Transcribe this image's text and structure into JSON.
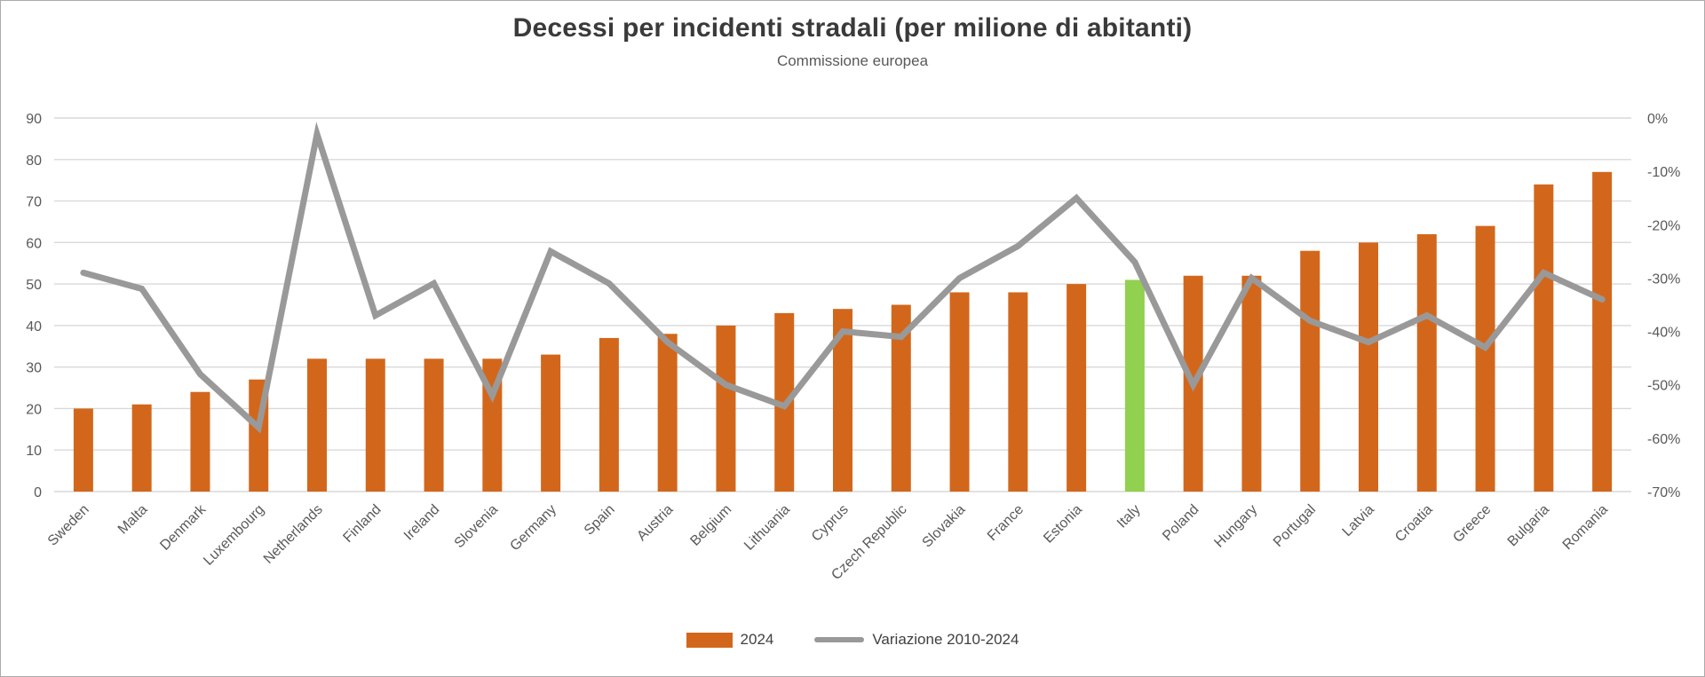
{
  "title": "Decessi per incidenti stradali (per milione di abitanti)",
  "subtitle": "Commissione europea",
  "legend": {
    "items": [
      {
        "label": "2024",
        "swatch": "bar"
      },
      {
        "label": "Variazione 2010-2024",
        "swatch": "line"
      }
    ]
  },
  "colors": {
    "bar": "#d2671c",
    "bar_highlight": "#92d050",
    "line": "#999999",
    "gridline": "#d9d9d9",
    "tick_text": "#595959",
    "title_text": "#3a3a3a"
  },
  "chart_data": {
    "type": "bar",
    "combo": "bar+line",
    "title": "Decessi per incidenti stradali (per milione di abitanti)",
    "subtitle": "Commissione europea",
    "categories": [
      "Sweden",
      "Malta",
      "Denmark",
      "Luxembourg",
      "Netherlands",
      "Finland",
      "Ireland",
      "Slovenia",
      "Germany",
      "Spain",
      "Austria",
      "Belgium",
      "Lithuania",
      "Cyprus",
      "Czech Republic",
      "Slovakia",
      "France",
      "Estonia",
      "Italy",
      "Poland",
      "Hungary",
      "Portugal",
      "Latvia",
      "Croatia",
      "Greece",
      "Bulgaria",
      "Romania"
    ],
    "series": [
      {
        "name": "2024",
        "type": "bar",
        "axis": "left",
        "values": [
          20,
          21,
          24,
          27,
          32,
          32,
          32,
          32,
          33,
          37,
          38,
          40,
          43,
          44,
          45,
          48,
          48,
          50,
          51,
          52,
          52,
          58,
          60,
          62,
          64,
          74,
          77
        ],
        "highlight": {
          "category": "Italy",
          "index": 18
        }
      },
      {
        "name": "Variazione 2010-2024",
        "type": "line",
        "axis": "right",
        "values": [
          -29,
          -32,
          -48,
          -58,
          -3,
          -37,
          -31,
          -52,
          -25,
          -31,
          -42,
          -50,
          -54,
          -40,
          -41,
          -30,
          -24,
          -15,
          -27,
          -50,
          -30,
          -38,
          -42,
          -37,
          -43,
          -29,
          -34
        ]
      }
    ],
    "left_axis": {
      "min": 0,
      "max": 90,
      "step": 10,
      "tick_labels": [
        "0",
        "10",
        "20",
        "30",
        "40",
        "50",
        "60",
        "70",
        "80",
        "90"
      ]
    },
    "right_axis": {
      "min": -70,
      "max": 0,
      "step": -10,
      "tick_labels": [
        "0%",
        "-10%",
        "-20%",
        "-30%",
        "-40%",
        "-50%",
        "-60%",
        "-70%"
      ]
    },
    "grid": true,
    "legend_position": "bottom"
  }
}
